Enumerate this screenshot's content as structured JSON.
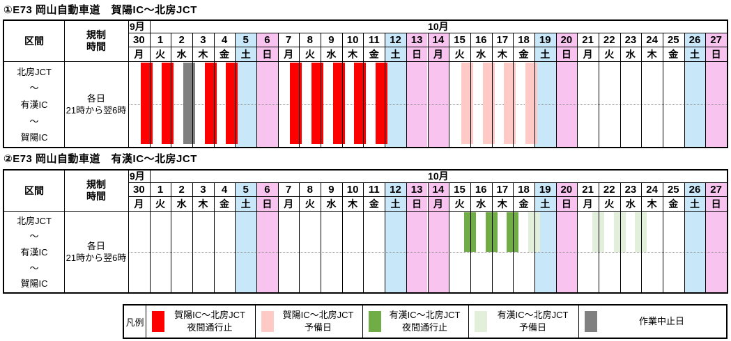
{
  "colors": {
    "saturday_bg": "#C8E7F8",
    "sunday_holiday_bg": "#F8C3EF",
    "kayo_closure": "#FF0000",
    "kayo_reserve": "#FFC9C5",
    "ukan_closure": "#70AD47",
    "ukan_reserve": "#E2EFDA",
    "work_cancelled": "#808080"
  },
  "calendar": {
    "september_label": "9月",
    "october_label": "10月",
    "days": [
      {
        "date": "30",
        "dow": "月",
        "shade": ""
      },
      {
        "date": "1",
        "dow": "火",
        "shade": ""
      },
      {
        "date": "2",
        "dow": "水",
        "shade": ""
      },
      {
        "date": "3",
        "dow": "木",
        "shade": ""
      },
      {
        "date": "4",
        "dow": "金",
        "shade": ""
      },
      {
        "date": "5",
        "dow": "土",
        "shade": "sat"
      },
      {
        "date": "6",
        "dow": "日",
        "shade": "sun"
      },
      {
        "date": "7",
        "dow": "月",
        "shade": ""
      },
      {
        "date": "8",
        "dow": "火",
        "shade": ""
      },
      {
        "date": "9",
        "dow": "水",
        "shade": ""
      },
      {
        "date": "10",
        "dow": "木",
        "shade": ""
      },
      {
        "date": "11",
        "dow": "金",
        "shade": ""
      },
      {
        "date": "12",
        "dow": "土",
        "shade": "sat"
      },
      {
        "date": "13",
        "dow": "日",
        "shade": "sun"
      },
      {
        "date": "14",
        "dow": "月",
        "shade": "sun"
      },
      {
        "date": "15",
        "dow": "火",
        "shade": ""
      },
      {
        "date": "16",
        "dow": "水",
        "shade": ""
      },
      {
        "date": "17",
        "dow": "木",
        "shade": ""
      },
      {
        "date": "18",
        "dow": "金",
        "shade": ""
      },
      {
        "date": "19",
        "dow": "土",
        "shade": "sat"
      },
      {
        "date": "20",
        "dow": "日",
        "shade": "sun"
      },
      {
        "date": "21",
        "dow": "月",
        "shade": ""
      },
      {
        "date": "22",
        "dow": "火",
        "shade": ""
      },
      {
        "date": "23",
        "dow": "水",
        "shade": ""
      },
      {
        "date": "24",
        "dow": "木",
        "shade": ""
      },
      {
        "date": "25",
        "dow": "金",
        "shade": ""
      },
      {
        "date": "26",
        "dow": "土",
        "shade": "sat"
      },
      {
        "date": "27",
        "dow": "日",
        "shade": "sun"
      }
    ]
  },
  "chart_data": [
    {
      "type": "table",
      "subtype": "night-closure-gantt-calendar",
      "title": "①E73 岡山自動車道　賀陽IC〜北房JCT",
      "section_header": "区間",
      "time_header_lines": [
        "規制",
        "時間"
      ],
      "section_lines": [
        "北房JCT",
        "〜",
        "有漢IC",
        "〜",
        "賀陽IC"
      ],
      "time_lines": [
        "各日",
        "21時から翌6時"
      ],
      "bar_extent": "both-subsections",
      "bars": [
        {
          "night_of": "9/30",
          "kind": "kayo_closure"
        },
        {
          "night_of": "10/1",
          "kind": "kayo_closure"
        },
        {
          "night_of": "10/2",
          "kind": "work_cancelled"
        },
        {
          "night_of": "10/3",
          "kind": "kayo_closure"
        },
        {
          "night_of": "10/4",
          "kind": "kayo_closure"
        },
        {
          "night_of": "10/7",
          "kind": "kayo_closure"
        },
        {
          "night_of": "10/8",
          "kind": "kayo_closure"
        },
        {
          "night_of": "10/9",
          "kind": "kayo_closure"
        },
        {
          "night_of": "10/10",
          "kind": "kayo_closure"
        },
        {
          "night_of": "10/11",
          "kind": "kayo_closure"
        },
        {
          "night_of": "10/15",
          "kind": "kayo_reserve"
        },
        {
          "night_of": "10/16",
          "kind": "kayo_reserve"
        },
        {
          "night_of": "10/17",
          "kind": "kayo_reserve"
        },
        {
          "night_of": "10/18",
          "kind": "kayo_reserve"
        }
      ]
    },
    {
      "type": "table",
      "subtype": "night-closure-gantt-calendar",
      "title": "②E73 岡山自動車道　有漢IC〜北房JCT",
      "section_header": "区間",
      "time_header_lines": [
        "規制",
        "時間"
      ],
      "section_lines": [
        "北房JCT",
        "〜",
        "有漢IC",
        "〜",
        "賀陽IC"
      ],
      "time_lines": [
        "各日",
        "21時から翌6時"
      ],
      "bar_extent": "upper-subsection",
      "bars": [
        {
          "night_of": "10/15",
          "kind": "ukan_closure"
        },
        {
          "night_of": "10/16",
          "kind": "ukan_closure"
        },
        {
          "night_of": "10/17",
          "kind": "ukan_closure"
        },
        {
          "night_of": "10/18",
          "kind": "ukan_reserve"
        },
        {
          "night_of": "10/21",
          "kind": "ukan_reserve"
        },
        {
          "night_of": "10/22",
          "kind": "ukan_reserve"
        },
        {
          "night_of": "10/23",
          "kind": "ukan_reserve"
        }
      ]
    }
  ],
  "legend": {
    "label": "凡例",
    "items": [
      {
        "kind": "kayo_closure",
        "lines": [
          "賀陽IC〜北房JCT",
          "夜間通行止"
        ]
      },
      {
        "kind": "kayo_reserve",
        "lines": [
          "賀陽IC〜北房JCT",
          "予備日"
        ]
      },
      {
        "kind": "ukan_closure",
        "lines": [
          "有漢IC〜北房JCT",
          "夜間通行止"
        ]
      },
      {
        "kind": "ukan_reserve",
        "lines": [
          "有漢IC〜北房JCT",
          "予備日"
        ]
      },
      {
        "kind": "work_cancelled",
        "lines": [
          "作業中止日"
        ]
      }
    ]
  }
}
